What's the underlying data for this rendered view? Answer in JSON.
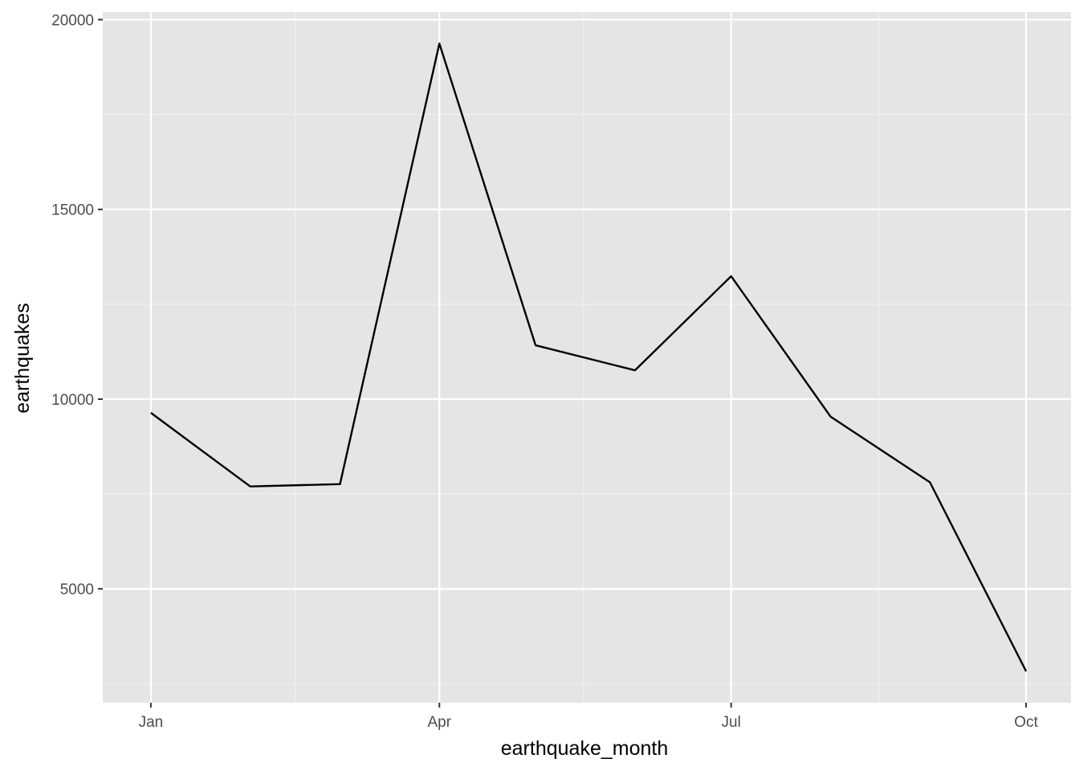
{
  "chart_data": {
    "type": "line",
    "title": "",
    "xlabel": "earthquake_month",
    "ylabel": "earthquakes",
    "x": [
      "2015-01-01",
      "2015-02-01",
      "2015-03-01",
      "2015-04-01",
      "2015-05-01",
      "2015-06-01",
      "2015-07-01",
      "2015-08-01",
      "2015-09-01",
      "2015-10-01"
    ],
    "series": [
      {
        "values": [
          9640,
          7700,
          7760,
          19370,
          11420,
          10760,
          13240,
          9540,
          7810,
          2830
        ]
      }
    ],
    "x_ticks": [
      {
        "date": "2015-01-01",
        "label": "Jan"
      },
      {
        "date": "2015-04-01",
        "label": "Apr"
      },
      {
        "date": "2015-07-01",
        "label": "Jul"
      },
      {
        "date": "2015-10-01",
        "label": "Oct"
      }
    ],
    "x_minor_breaks": [
      "2015-02-15",
      "2015-05-16",
      "2015-08-16"
    ],
    "xlim": [
      "2014-12-17",
      "2015-10-15"
    ],
    "y_ticks": [
      5000,
      10000,
      15000,
      20000
    ],
    "y_minor_breaks": [
      2500,
      7500,
      12500,
      17500
    ],
    "ylim": [
      2000,
      20200
    ],
    "grid": true,
    "legend": "none",
    "colors": {
      "panel_background": "#e5e5e5",
      "grid_major": "#ffffff",
      "grid_minor": "#f2f2f2",
      "line": "#000000",
      "tick_text": "#4d4d4d",
      "tick_mark": "#333333",
      "axis_title": "#000000"
    }
  }
}
